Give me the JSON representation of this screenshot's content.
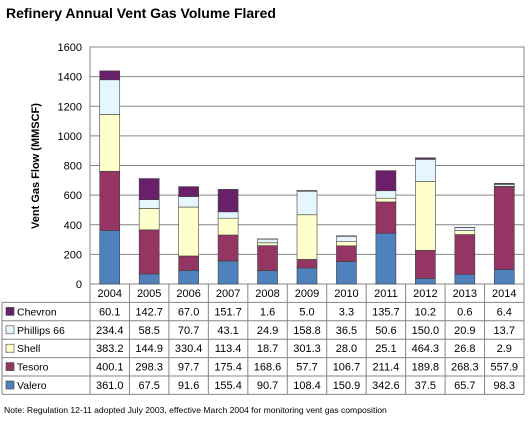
{
  "chart_data": {
    "type": "bar",
    "stacked": true,
    "title": "Refinery Annual Vent Gas Volume Flared",
    "xlabel": "",
    "ylabel": "Vent Gas Flow (MMSCF)",
    "ylim": [
      0,
      1600
    ],
    "yticks": [
      0,
      200,
      400,
      600,
      800,
      1000,
      1200,
      1400,
      1600
    ],
    "grid": true,
    "legend": "table-below",
    "categories": [
      "2004",
      "2005",
      "2006",
      "2007",
      "2008",
      "2009",
      "2010",
      "2011",
      "2012",
      "2013",
      "2014"
    ],
    "series": [
      {
        "name": "Valero",
        "color": "#4F81BD",
        "values": [
          361.0,
          67.5,
          91.6,
          155.4,
          90.7,
          108.4,
          150.9,
          342.6,
          37.5,
          65.7,
          98.3
        ]
      },
      {
        "name": "Tesoro",
        "color": "#953563",
        "values": [
          400.1,
          298.3,
          97.7,
          175.4,
          168.6,
          57.7,
          106.7,
          211.4,
          189.8,
          268.3,
          557.9
        ]
      },
      {
        "name": "Shell",
        "color": "#FFFFCC",
        "values": [
          383.2,
          144.9,
          330.4,
          113.4,
          18.7,
          301.3,
          28.0,
          25.1,
          464.3,
          26.8,
          2.9
        ]
      },
      {
        "name": "Phillips 66",
        "color": "#E6F6FF",
        "values": [
          234.4,
          58.5,
          70.7,
          43.1,
          24.9,
          158.8,
          36.5,
          50.6,
          150.0,
          20.9,
          13.7
        ]
      },
      {
        "name": "Chevron",
        "color": "#6B1F6B",
        "values": [
          60.1,
          142.7,
          67.0,
          151.7,
          1.6,
          5.0,
          3.3,
          135.7,
          10.2,
          0.6,
          6.4
        ]
      }
    ],
    "table_order": [
      "Chevron",
      "Phillips 66",
      "Shell",
      "Tesoro",
      "Valero"
    ],
    "table_values": {
      "Chevron": [
        "60.1",
        "142.7",
        "67.0",
        "151.7",
        "1.6",
        "5.0",
        "3.3",
        "135.7",
        "10.2",
        "0.6",
        "6.4"
      ],
      "Phillips 66": [
        "234.4",
        "58.5",
        "70.7",
        "43.1",
        "24.9",
        "158.8",
        "36.5",
        "50.6",
        "150.0",
        "20.9",
        "13.7"
      ],
      "Shell": [
        "383.2",
        "144.9",
        "330.4",
        "113.4",
        "18.7",
        "301.3",
        "28.0",
        "25.1",
        "464.3",
        "26.8",
        "2.9"
      ],
      "Tesoro": [
        "400.1",
        "298.3",
        "97.7",
        "175.4",
        "168.6",
        "57.7",
        "106.7",
        "211.4",
        "189.8",
        "268.3",
        "557.9"
      ],
      "Valero": [
        "361.0",
        "67.5",
        "91.6",
        "155.4",
        "90.7",
        "108.4",
        "150.9",
        "342.6",
        "37.5",
        "65.7",
        "98.3"
      ]
    }
  },
  "note": "Note: Regulation 12-11 adopted July 2003, effective March 2004 for monitoring vent gas composition"
}
